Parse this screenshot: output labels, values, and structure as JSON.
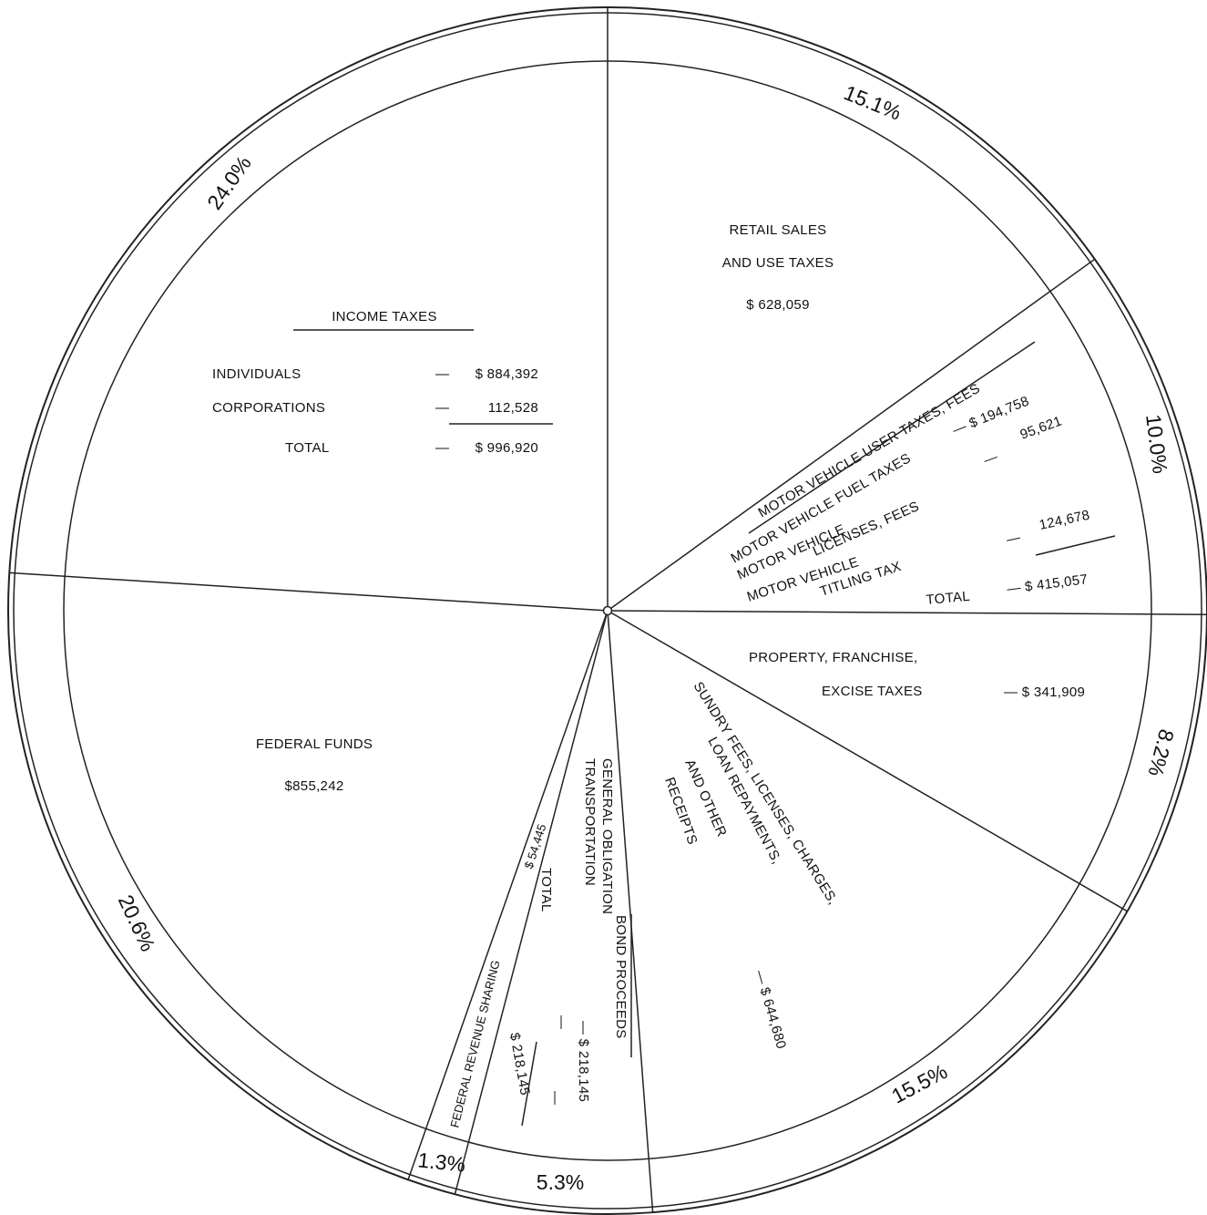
{
  "chart_data": {
    "type": "pie",
    "slices": [
      {
        "key": "retail",
        "name": "RETAIL SALES AND USE TAXES",
        "percent": 15.1,
        "value": 628059,
        "pct_label": "15.1%"
      },
      {
        "key": "motor",
        "name": "MOTOR VEHICLE USER TAXES, FEES",
        "percent": 10.0,
        "value": 415057,
        "pct_label": "10.0%"
      },
      {
        "key": "property",
        "name": "PROPERTY, FRANCHISE, EXCISE TAXES",
        "percent": 8.2,
        "value": 341909,
        "pct_label": "8.2%"
      },
      {
        "key": "sundry",
        "name": "SUNDRY FEES, LICENSES, CHARGES, LOAN REPAYMENTS, AND OTHER RECEIPTS",
        "percent": 15.5,
        "value": 644680,
        "pct_label": "15.5%"
      },
      {
        "key": "bond",
        "name": "BOND PROCEEDS",
        "percent": 5.3,
        "value": 218145,
        "pct_label": "5.3%"
      },
      {
        "key": "revenue_sharing",
        "name": "FEDERAL REVENUE SHARING",
        "percent": 1.3,
        "value": 54445,
        "pct_label": "1.3%"
      },
      {
        "key": "federal",
        "name": "FEDERAL FUNDS",
        "percent": 20.6,
        "value": 855242,
        "pct_label": "20.6%"
      },
      {
        "key": "income",
        "name": "INCOME TAXES",
        "percent": 24.0,
        "value": 996920,
        "pct_label": "24.0%"
      }
    ]
  },
  "labels": {
    "retail": {
      "line1": "RETAIL SALES",
      "line2": "AND USE TAXES",
      "amount": "$ 628,059"
    },
    "income": {
      "title": "INCOME TAXES",
      "rows": [
        {
          "label": "INDIVIDUALS",
          "dash": "—",
          "amount": "$ 884,392"
        },
        {
          "label": "CORPORATIONS",
          "dash": "—",
          "amount": "112,528"
        },
        {
          "label": "TOTAL",
          "dash": "—",
          "amount": "$ 996,920"
        }
      ]
    },
    "motor": {
      "title": "MOTOR VEHICLE USER TAXES, FEES",
      "fuel": "MOTOR VEHICLE FUEL TAXES",
      "fuel_amount": "— $ 194,758",
      "licenses_1": "MOTOR VEHICLE",
      "licenses_2": "LICENSES, FEES",
      "licenses_dash": "—",
      "licenses_amount": "95,621",
      "titling_1": "MOTOR VEHICLE",
      "titling_2": "TITLING TAX",
      "titling_dash": "—",
      "titling_amount": "124,678",
      "total": "TOTAL",
      "total_amount": "— $ 415,057"
    },
    "property": {
      "line1": "PROPERTY, FRANCHISE,",
      "line2": "EXCISE TAXES",
      "amount": "— $ 341,909"
    },
    "sundry": {
      "line1": "SUNDRY FEES, LICENSES, CHARGES,",
      "line2": "LOAN REPAYMENTS,",
      "line3": "AND OTHER",
      "line4": "RECEIPTS",
      "amount": "— $ 644,680"
    },
    "bond": {
      "title": "BOND PROCEEDS",
      "go_1": "GENERAL OBLIGATION",
      "go_2": "TRANSPORTATION",
      "go_amount": "— $ 218,145",
      "total": "TOTAL",
      "dash": "—",
      "total_amount": "$ 218,145"
    },
    "revenue_sharing": {
      "name": "FEDERAL REVENUE SHARING",
      "amount": "$ 54,445"
    },
    "federal": {
      "line1": "FEDERAL FUNDS",
      "line2": "$855,242"
    }
  }
}
